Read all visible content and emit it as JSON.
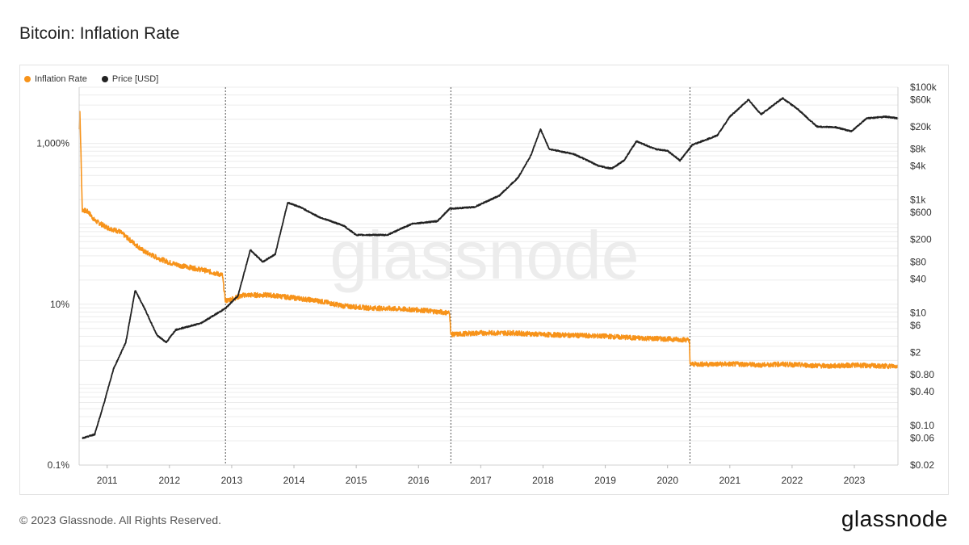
{
  "page": {
    "title": "Bitcoin: Inflation Rate",
    "copyright": "© 2023 Glassnode. All Rights Reserved.",
    "brand": "glassnode",
    "watermark": "glassnode"
  },
  "colors": {
    "inflation": "#f7931a",
    "price": "#222222",
    "grid": "#ececec",
    "halving_line": "#555555"
  },
  "chart_data": {
    "type": "line",
    "title": "Bitcoin: Inflation Rate",
    "legend_position": "top-left",
    "grid": true,
    "x": {
      "ticks": [
        "2011",
        "2012",
        "2013",
        "2014",
        "2015",
        "2016",
        "2017",
        "2018",
        "2019",
        "2020",
        "2021",
        "2022",
        "2023"
      ],
      "range": [
        2010.55,
        2023.7
      ]
    },
    "y_left": {
      "scale": "log",
      "range": [
        0.1,
        5000
      ],
      "ticks": [
        {
          "value": 1000,
          "label": "1,000%"
        },
        {
          "value": 10,
          "label": "10%"
        },
        {
          "value": 0.1,
          "label": "0.1%"
        }
      ]
    },
    "y_right": {
      "scale": "log",
      "range": [
        0.02,
        100000
      ],
      "ticks": [
        {
          "value": 100000,
          "label": "$100k"
        },
        {
          "value": 60000,
          "label": "$60k"
        },
        {
          "value": 20000,
          "label": "$20k"
        },
        {
          "value": 8000,
          "label": "$8k"
        },
        {
          "value": 4000,
          "label": "$4k"
        },
        {
          "value": 1000,
          "label": "$1k"
        },
        {
          "value": 600,
          "label": "$600"
        },
        {
          "value": 200,
          "label": "$200"
        },
        {
          "value": 80,
          "label": "$80"
        },
        {
          "value": 40,
          "label": "$40"
        },
        {
          "value": 10,
          "label": "$10"
        },
        {
          "value": 6,
          "label": "$6"
        },
        {
          "value": 2,
          "label": "$2"
        },
        {
          "value": 0.8,
          "label": "$0.80"
        },
        {
          "value": 0.4,
          "label": "$0.40"
        },
        {
          "value": 0.1,
          "label": "$0.10"
        },
        {
          "value": 0.06,
          "label": "$0.06"
        },
        {
          "value": 0.02,
          "label": "$0.02"
        }
      ]
    },
    "halvings": [
      2012.9,
      2016.52,
      2020.36
    ],
    "series": [
      {
        "name": "Inflation Rate",
        "axis": "left",
        "color": "#f7931a",
        "points": [
          [
            2010.55,
            1500
          ],
          [
            2010.56,
            3000
          ],
          [
            2010.6,
            150
          ],
          [
            2010.7,
            140
          ],
          [
            2010.8,
            110
          ],
          [
            2011.0,
            90
          ],
          [
            2011.2,
            80
          ],
          [
            2011.4,
            60
          ],
          [
            2011.6,
            45
          ],
          [
            2011.8,
            38
          ],
          [
            2012.0,
            33
          ],
          [
            2012.2,
            30
          ],
          [
            2012.4,
            28
          ],
          [
            2012.6,
            26
          ],
          [
            2012.85,
            23
          ],
          [
            2012.9,
            11
          ],
          [
            2013.2,
            13
          ],
          [
            2013.6,
            13
          ],
          [
            2014.0,
            12
          ],
          [
            2014.4,
            11
          ],
          [
            2014.8,
            9.5
          ],
          [
            2015.2,
            9
          ],
          [
            2015.6,
            8.8
          ],
          [
            2016.0,
            8.5
          ],
          [
            2016.5,
            7.8
          ],
          [
            2016.52,
            4.2
          ],
          [
            2017.0,
            4.4
          ],
          [
            2017.5,
            4.4
          ],
          [
            2018.0,
            4.2
          ],
          [
            2018.5,
            4.1
          ],
          [
            2019.0,
            4.0
          ],
          [
            2019.5,
            3.8
          ],
          [
            2020.0,
            3.7
          ],
          [
            2020.35,
            3.6
          ],
          [
            2020.36,
            1.8
          ],
          [
            2020.8,
            1.8
          ],
          [
            2021.2,
            1.8
          ],
          [
            2021.5,
            1.75
          ],
          [
            2021.8,
            1.8
          ],
          [
            2022.2,
            1.75
          ],
          [
            2022.6,
            1.7
          ],
          [
            2023.0,
            1.75
          ],
          [
            2023.4,
            1.7
          ],
          [
            2023.7,
            1.7
          ]
        ]
      },
      {
        "name": "Price [USD]",
        "axis": "right",
        "color": "#222222",
        "points": [
          [
            2010.6,
            0.06
          ],
          [
            2010.8,
            0.07
          ],
          [
            2010.95,
            0.25
          ],
          [
            2011.1,
            1
          ],
          [
            2011.3,
            3
          ],
          [
            2011.45,
            25
          ],
          [
            2011.6,
            12
          ],
          [
            2011.8,
            4
          ],
          [
            2011.95,
            3
          ],
          [
            2012.1,
            5
          ],
          [
            2012.5,
            6.5
          ],
          [
            2012.9,
            12
          ],
          [
            2013.1,
            20
          ],
          [
            2013.3,
            130
          ],
          [
            2013.5,
            80
          ],
          [
            2013.7,
            110
          ],
          [
            2013.9,
            900
          ],
          [
            2014.1,
            750
          ],
          [
            2014.4,
            500
          ],
          [
            2014.8,
            350
          ],
          [
            2015.0,
            240
          ],
          [
            2015.5,
            240
          ],
          [
            2015.9,
            380
          ],
          [
            2016.3,
            420
          ],
          [
            2016.5,
            700
          ],
          [
            2016.9,
            750
          ],
          [
            2017.3,
            1200
          ],
          [
            2017.6,
            2500
          ],
          [
            2017.8,
            6000
          ],
          [
            2017.96,
            18000
          ],
          [
            2018.1,
            8000
          ],
          [
            2018.5,
            6500
          ],
          [
            2018.9,
            4000
          ],
          [
            2019.1,
            3600
          ],
          [
            2019.3,
            5000
          ],
          [
            2019.5,
            11000
          ],
          [
            2019.8,
            8000
          ],
          [
            2020.0,
            7500
          ],
          [
            2020.2,
            5000
          ],
          [
            2020.4,
            9500
          ],
          [
            2020.8,
            14000
          ],
          [
            2021.0,
            30000
          ],
          [
            2021.3,
            60000
          ],
          [
            2021.5,
            33000
          ],
          [
            2021.85,
            64000
          ],
          [
            2022.1,
            40000
          ],
          [
            2022.4,
            20000
          ],
          [
            2022.7,
            19500
          ],
          [
            2022.95,
            16500
          ],
          [
            2023.2,
            28000
          ],
          [
            2023.5,
            30000
          ],
          [
            2023.7,
            28000
          ]
        ]
      }
    ]
  }
}
